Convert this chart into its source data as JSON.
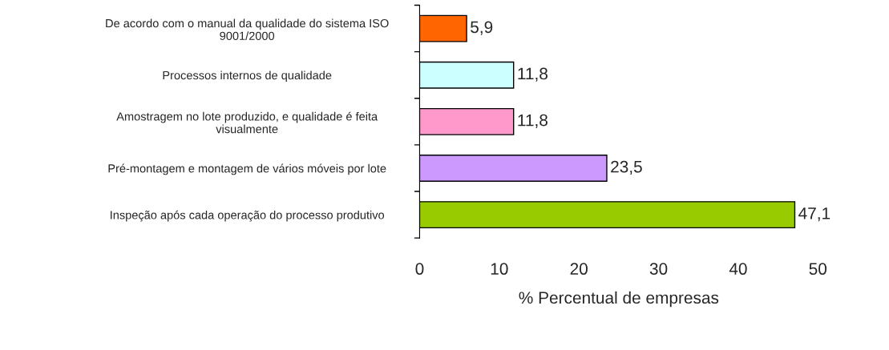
{
  "chart_data": {
    "type": "bar",
    "orientation": "horizontal",
    "categories": [
      "De acordo com o manual da qualidade do sistema ISO\n9001/2000",
      "Processos internos de qualidade",
      "Amostragem no lote produzido, e qualidade é feita\nvisualmente",
      "Pré-montagem e montagem de vários móveis por lote",
      "Inspeção após cada operação do processo produtivo"
    ],
    "values": [
      5.9,
      11.8,
      11.8,
      23.5,
      47.1
    ],
    "value_labels": [
      "5,9",
      "11,8",
      "11,8",
      "23,5",
      "47,1"
    ],
    "colors": [
      "#ff6600",
      "#ccffff",
      "#ff99cc",
      "#cc99ff",
      "#99cc00"
    ],
    "xlabel": "% Percentual de empresas",
    "xlim": [
      0,
      50
    ],
    "xticks": [
      0,
      10,
      20,
      30,
      40,
      50
    ],
    "grid": false,
    "legend": false
  }
}
